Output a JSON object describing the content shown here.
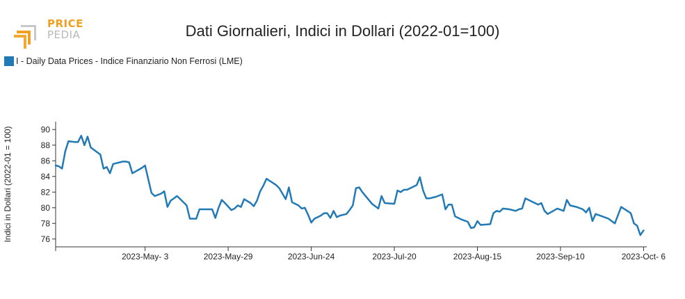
{
  "header": {
    "title": "Dati Giornalieri, Indici in Dollari (2022-01=100)",
    "logo": {
      "line1": "PRICE",
      "line2": "PEDIA"
    }
  },
  "legend": {
    "label": "I - Daily Data Prices - Indice Finanziario Non Ferrosi (LME)",
    "color": "#2179b5"
  },
  "chart_data": {
    "type": "line",
    "title": "Dati Giornalieri, Indici in Dollari (2022-01=100)",
    "xlabel": "",
    "ylabel": "Indici in Dollari (2022-01 = 100)",
    "ylim": [
      75,
      91
    ],
    "yticks": [
      76,
      78,
      80,
      82,
      84,
      86,
      88,
      90
    ],
    "xlim": [
      "2023-04-05",
      "2023-10-07"
    ],
    "xticks": [
      {
        "date": "2023-05-03",
        "label": "2023-May- 3"
      },
      {
        "date": "2023-05-29",
        "label": "2023-May-29"
      },
      {
        "date": "2023-06-24",
        "label": "2023-Jun-24"
      },
      {
        "date": "2023-07-20",
        "label": "2023-Jul-20"
      },
      {
        "date": "2023-08-15",
        "label": "2023-Aug-15"
      },
      {
        "date": "2023-09-10",
        "label": "2023-Sep-10"
      },
      {
        "date": "2023-10-06",
        "label": "2023-Oct- 6"
      }
    ],
    "grid": false,
    "legend_position": "top-left",
    "series": [
      {
        "name": "I - Daily Data Prices - Indice Finanziario Non Ferrosi (LME)",
        "color": "#2179b5",
        "points": [
          [
            "2023-04-05",
            85.4
          ],
          [
            "2023-04-06",
            85.3
          ],
          [
            "2023-04-07",
            85.0
          ],
          [
            "2023-04-08",
            87.2
          ],
          [
            "2023-04-09",
            88.5
          ],
          [
            "2023-04-11",
            88.4
          ],
          [
            "2023-04-12",
            88.4
          ],
          [
            "2023-04-13",
            89.2
          ],
          [
            "2023-04-14",
            88.0
          ],
          [
            "2023-04-15",
            89.1
          ],
          [
            "2023-04-16",
            87.7
          ],
          [
            "2023-04-17",
            87.4
          ],
          [
            "2023-04-18",
            87.1
          ],
          [
            "2023-04-19",
            86.8
          ],
          [
            "2023-04-20",
            85.0
          ],
          [
            "2023-04-21",
            85.2
          ],
          [
            "2023-04-22",
            84.4
          ],
          [
            "2023-04-23",
            85.6
          ],
          [
            "2023-04-25",
            85.8
          ],
          [
            "2023-04-26",
            85.9
          ],
          [
            "2023-04-27",
            85.9
          ],
          [
            "2023-04-28",
            85.8
          ],
          [
            "2023-04-29",
            84.4
          ],
          [
            "2023-05-02",
            85.1
          ],
          [
            "2023-05-03",
            85.4
          ],
          [
            "2023-05-05",
            81.9
          ],
          [
            "2023-05-06",
            81.5
          ],
          [
            "2023-05-08",
            81.8
          ],
          [
            "2023-05-09",
            82.1
          ],
          [
            "2023-05-10",
            80.1
          ],
          [
            "2023-05-11",
            80.9
          ],
          [
            "2023-05-13",
            81.5
          ],
          [
            "2023-05-16",
            80.3
          ],
          [
            "2023-05-17",
            78.6
          ],
          [
            "2023-05-19",
            78.6
          ],
          [
            "2023-05-20",
            79.8
          ],
          [
            "2023-05-24",
            79.8
          ],
          [
            "2023-05-25",
            78.7
          ],
          [
            "2023-05-26",
            80.0
          ],
          [
            "2023-05-27",
            81.0
          ],
          [
            "2023-05-28",
            80.6
          ],
          [
            "2023-05-30",
            79.7
          ],
          [
            "2023-05-31",
            79.9
          ],
          [
            "2023-06-01",
            80.3
          ],
          [
            "2023-06-02",
            80.1
          ],
          [
            "2023-06-03",
            81.1
          ],
          [
            "2023-06-05",
            80.6
          ],
          [
            "2023-06-06",
            80.2
          ],
          [
            "2023-06-07",
            80.9
          ],
          [
            "2023-06-08",
            82.1
          ],
          [
            "2023-06-09",
            82.8
          ],
          [
            "2023-06-10",
            83.7
          ],
          [
            "2023-06-13",
            82.9
          ],
          [
            "2023-06-14",
            82.5
          ],
          [
            "2023-06-15",
            81.8
          ],
          [
            "2023-06-16",
            81.1
          ],
          [
            "2023-06-17",
            82.6
          ],
          [
            "2023-06-18",
            80.7
          ],
          [
            "2023-06-20",
            80.3
          ],
          [
            "2023-06-21",
            79.9
          ],
          [
            "2023-06-22",
            80.0
          ],
          [
            "2023-06-23",
            79.1
          ],
          [
            "2023-06-24",
            78.1
          ],
          [
            "2023-06-25",
            78.6
          ],
          [
            "2023-06-27",
            79.0
          ],
          [
            "2023-06-28",
            79.3
          ],
          [
            "2023-06-29",
            79.3
          ],
          [
            "2023-06-30",
            78.7
          ],
          [
            "2023-07-01",
            79.6
          ],
          [
            "2023-07-02",
            78.8
          ],
          [
            "2023-07-03",
            79.0
          ],
          [
            "2023-07-05",
            79.2
          ],
          [
            "2023-07-06",
            79.7
          ],
          [
            "2023-07-07",
            80.3
          ],
          [
            "2023-07-08",
            82.5
          ],
          [
            "2023-07-09",
            82.6
          ],
          [
            "2023-07-10",
            82.0
          ],
          [
            "2023-07-11",
            81.5
          ],
          [
            "2023-07-13",
            80.5
          ],
          [
            "2023-07-15",
            79.9
          ],
          [
            "2023-07-16",
            81.5
          ],
          [
            "2023-07-17",
            80.6
          ],
          [
            "2023-07-20",
            80.5
          ],
          [
            "2023-07-21",
            82.2
          ],
          [
            "2023-07-22",
            82.0
          ],
          [
            "2023-07-23",
            82.3
          ],
          [
            "2023-07-24",
            82.3
          ],
          [
            "2023-07-27",
            82.9
          ],
          [
            "2023-07-28",
            83.9
          ],
          [
            "2023-07-29",
            82.2
          ],
          [
            "2023-07-30",
            81.2
          ],
          [
            "2023-07-31",
            81.2
          ],
          [
            "2023-08-02",
            81.4
          ],
          [
            "2023-08-04",
            81.7
          ],
          [
            "2023-08-05",
            79.8
          ],
          [
            "2023-08-06",
            80.4
          ],
          [
            "2023-08-07",
            80.4
          ],
          [
            "2023-08-08",
            78.9
          ],
          [
            "2023-08-10",
            78.5
          ],
          [
            "2023-08-12",
            78.2
          ],
          [
            "2023-08-13",
            77.4
          ],
          [
            "2023-08-14",
            77.5
          ],
          [
            "2023-08-15",
            78.3
          ],
          [
            "2023-08-16",
            77.8
          ],
          [
            "2023-08-19",
            77.9
          ],
          [
            "2023-08-20",
            79.3
          ],
          [
            "2023-08-21",
            79.6
          ],
          [
            "2023-08-22",
            79.5
          ],
          [
            "2023-08-23",
            79.9
          ],
          [
            "2023-08-25",
            79.8
          ],
          [
            "2023-08-27",
            79.6
          ],
          [
            "2023-08-28",
            79.8
          ],
          [
            "2023-08-29",
            79.9
          ],
          [
            "2023-08-30",
            81.2
          ],
          [
            "2023-09-01",
            80.8
          ],
          [
            "2023-09-03",
            80.4
          ],
          [
            "2023-09-04",
            80.6
          ],
          [
            "2023-09-05",
            79.6
          ],
          [
            "2023-09-06",
            79.2
          ],
          [
            "2023-09-09",
            79.9
          ],
          [
            "2023-09-11",
            79.6
          ],
          [
            "2023-09-12",
            81.0
          ],
          [
            "2023-09-13",
            80.3
          ],
          [
            "2023-09-15",
            80.1
          ],
          [
            "2023-09-17",
            79.8
          ],
          [
            "2023-09-18",
            79.4
          ],
          [
            "2023-09-19",
            80.0
          ],
          [
            "2023-09-20",
            78.3
          ],
          [
            "2023-09-21",
            79.2
          ],
          [
            "2023-09-23",
            78.9
          ],
          [
            "2023-09-25",
            78.6
          ],
          [
            "2023-09-27",
            78.0
          ],
          [
            "2023-09-29",
            80.1
          ],
          [
            "2023-10-02",
            79.3
          ],
          [
            "2023-10-03",
            78.0
          ],
          [
            "2023-10-04",
            77.7
          ],
          [
            "2023-10-05",
            76.5
          ],
          [
            "2023-10-06",
            77.1
          ]
        ]
      }
    ]
  }
}
